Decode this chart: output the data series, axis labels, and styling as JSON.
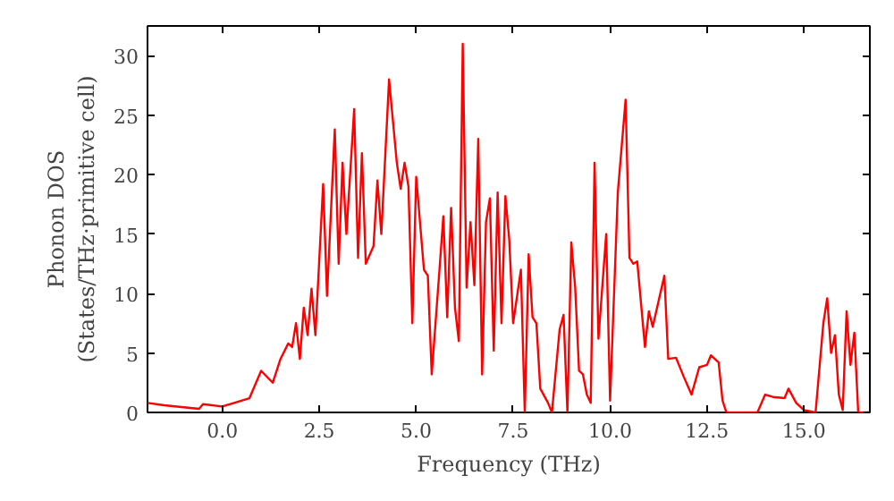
{
  "chart_data": {
    "type": "line",
    "xlabel": "Frequency (THz)",
    "ylabel": "Phonon DOS\n(States/THz·primitive cell)",
    "xlim": [
      -1.93,
      16.7
    ],
    "ylim": [
      0,
      32.5
    ],
    "xticks": [
      {
        "value": 0,
        "label": "0.0"
      },
      {
        "value": 2.5,
        "label": "2.5"
      },
      {
        "value": 5,
        "label": "5.0"
      },
      {
        "value": 7.5,
        "label": "7.5"
      },
      {
        "value": 10,
        "label": "10.0"
      },
      {
        "value": 12.5,
        "label": "12.5"
      },
      {
        "value": 15,
        "label": "15.0"
      }
    ],
    "yticks": [
      0,
      5,
      10,
      15,
      20,
      25,
      30
    ],
    "grid": false,
    "marker": "none",
    "line_style": "solid",
    "series": [
      {
        "color": "#ff0000",
        "x": [
          -1.93,
          -1.5,
          -0.6,
          -0.5,
          0.0,
          0.7,
          1.0,
          1.3,
          1.5,
          1.7,
          1.8,
          1.9,
          2.0,
          2.1,
          2.2,
          2.3,
          2.4,
          2.6,
          2.7,
          2.9,
          3.0,
          3.1,
          3.2,
          3.4,
          3.5,
          3.6,
          3.7,
          3.9,
          4.0,
          4.1,
          4.3,
          4.5,
          4.6,
          4.7,
          4.8,
          4.9,
          5.0,
          5.2,
          5.3,
          5.4,
          5.6,
          5.7,
          5.8,
          5.9,
          6.0,
          6.1,
          6.2,
          6.3,
          6.4,
          6.5,
          6.6,
          6.7,
          6.8,
          6.9,
          7.0,
          7.1,
          7.2,
          7.3,
          7.4,
          7.5,
          7.7,
          7.8,
          7.9,
          8.0,
          8.1,
          8.2,
          8.4,
          8.5,
          8.7,
          8.8,
          8.9,
          9.0,
          9.1,
          9.2,
          9.3,
          9.4,
          9.5,
          9.6,
          9.7,
          9.9,
          10.0,
          10.2,
          10.4,
          10.5,
          10.6,
          10.7,
          10.9,
          11.0,
          11.1,
          11.4,
          11.5,
          11.7,
          11.9,
          12.1,
          12.3,
          12.5,
          12.6,
          12.8,
          12.9,
          13.0,
          13.8,
          14.0,
          14.2,
          14.5,
          14.6,
          14.8,
          15.0,
          15.3,
          15.5,
          15.6,
          15.7,
          15.8,
          15.9,
          16.0,
          16.1,
          16.2,
          16.3,
          16.4,
          16.7
        ],
        "values": [
          0.8,
          0.6,
          0.3,
          0.7,
          0.5,
          1.2,
          3.5,
          2.5,
          4.5,
          5.8,
          5.5,
          7.5,
          4.5,
          8.8,
          6.5,
          10.4,
          6.5,
          19.2,
          9.8,
          23.8,
          12.5,
          21,
          15,
          25.5,
          13,
          21.8,
          12.5,
          14,
          19.5,
          15,
          28,
          21,
          18.8,
          21,
          19,
          7.5,
          19.8,
          12,
          11.5,
          3.2,
          12,
          16.5,
          8,
          17.2,
          8.8,
          6,
          31,
          10.5,
          16,
          10.7,
          23,
          3.2,
          16,
          18,
          5.2,
          18.5,
          7.5,
          18.2,
          14.5,
          7.5,
          12,
          0,
          13.3,
          8,
          7.5,
          2,
          0.8,
          0,
          7,
          8.2,
          0,
          14.3,
          10.5,
          3.5,
          3.2,
          1.5,
          0.8,
          21,
          6.2,
          15,
          1,
          18.5,
          26.3,
          13,
          12.5,
          12.7,
          5.5,
          8.5,
          7.2,
          11.5,
          4.5,
          4.6,
          3,
          1.5,
          3.8,
          4,
          4.8,
          4.2,
          1,
          0,
          0,
          1.5,
          1.3,
          1.2,
          2,
          0.8,
          0.2,
          0,
          7.5,
          9.6,
          5,
          6.5,
          1.5,
          0.2,
          8.5,
          4,
          6.7,
          0,
          0
        ]
      }
    ]
  }
}
